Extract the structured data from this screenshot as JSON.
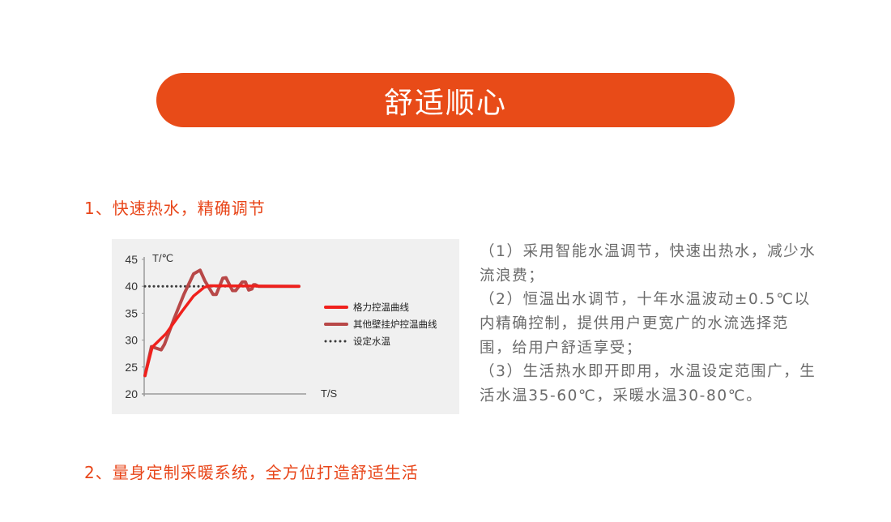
{
  "banner": {
    "title": "舒适顺心"
  },
  "sections": [
    {
      "heading": "1、快速热水，精确调节"
    },
    {
      "heading": "2、量身定制采暖系统，全方位打造舒适生活"
    }
  ],
  "description_lines": [
    "（1）采用智能水温调节，快速出热水，减少水",
    "流浪费；",
    "（2）恒温出水调节，十年水温波动±0.5℃以",
    "内精确控制，提供用户更宽广的水流选择范",
    "围，给用户舒适享受；",
    "（3）生活热水即开即用，水温设定范围广，生",
    "活水温35-60℃，采暖水温30-80℃。"
  ],
  "chart_data": {
    "type": "line",
    "ylabel": "T/℃",
    "xlabel": "T/S",
    "ylim": [
      20,
      45
    ],
    "yticks": [
      20,
      25,
      30,
      35,
      40,
      45
    ],
    "grid": false,
    "legend_position": "right",
    "series": [
      {
        "name": "格力控温曲线",
        "color": "#f0201c",
        "style": "solid",
        "points": [
          [
            0,
            23.4
          ],
          [
            4.5,
            28.7
          ],
          [
            13,
            31.2
          ],
          [
            23,
            35.4
          ],
          [
            30,
            38.2
          ],
          [
            36.5,
            39.8
          ],
          [
            40,
            40.1
          ],
          [
            95,
            40
          ]
        ]
      },
      {
        "name": "其他壁挂炉控温曲线",
        "color": "#b84848",
        "style": "solid",
        "points": [
          [
            0,
            23.4
          ],
          [
            4,
            28.8
          ],
          [
            7,
            28.5
          ],
          [
            10,
            28.2
          ],
          [
            12,
            29.2
          ],
          [
            18,
            34
          ],
          [
            24,
            38.5
          ],
          [
            30,
            42.3
          ],
          [
            34,
            43
          ],
          [
            37,
            41
          ],
          [
            42,
            38.5
          ],
          [
            44,
            38.5
          ],
          [
            48,
            41.5
          ],
          [
            50,
            41.6
          ],
          [
            54,
            39.2
          ],
          [
            56,
            39.2
          ],
          [
            60,
            40.8
          ],
          [
            62,
            40.8
          ],
          [
            64,
            39.3
          ],
          [
            66,
            39.5
          ],
          [
            67,
            40.3
          ],
          [
            68,
            40.3
          ],
          [
            70,
            40
          ],
          [
            95,
            40
          ]
        ]
      },
      {
        "name": "设定水温",
        "color": "#3a3a3a",
        "style": "dotted",
        "points": [
          [
            0,
            40
          ],
          [
            95,
            40
          ]
        ]
      }
    ]
  }
}
